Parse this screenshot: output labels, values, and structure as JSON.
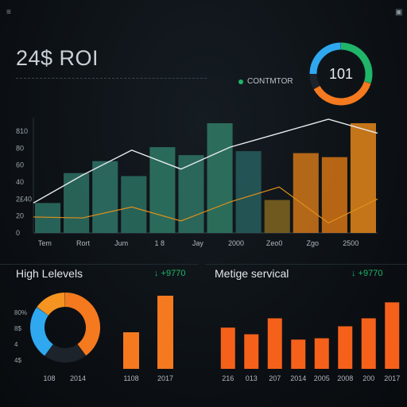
{
  "header": {
    "title": "24$ ROI",
    "legend_label": "CONTMTOR",
    "gauge_value": "101",
    "menu_icon": "menu-icon",
    "window_icon": "window-icon"
  },
  "colors": {
    "teal": "#2b6e62",
    "dark_teal": "#22504c",
    "orange": "#f5791f",
    "amber": "#c7751e",
    "blue": "#2fa8f0",
    "green": "#1fb66a",
    "line_orange": "#e0901c"
  },
  "panels": {
    "left": {
      "title": "High Lelevels",
      "value": "↓ +9770"
    },
    "right": {
      "title": "Metige servical",
      "value": "↓ +9770"
    }
  },
  "chart_data": [
    {
      "type": "bar",
      "title": "",
      "y_ticks": [
        "0",
        "20",
        "2£40",
        "40",
        "60",
        "80",
        "810"
      ],
      "x_tick_labels": [
        "Tem",
        "Rort",
        "Jum",
        "1 8",
        "Jay",
        "2000",
        "Zeo0",
        "Zgo",
        "2500"
      ],
      "ylim": [
        0,
        110
      ],
      "series": [
        {
          "values": [
            30,
            58,
            83,
            64,
            86,
            100,
            114,
            100
          ]
        },
        {
          "values": [
            16,
            15,
            26,
            12,
            31,
            46,
            10,
            34
          ]
        }
      ],
      "bars": [
        {
          "x": 0,
          "value": 30,
          "color": "#2a6c5f"
        },
        {
          "x": 1,
          "value": 60,
          "color": "#2b6b5e"
        },
        {
          "x": 2,
          "value": 72,
          "color": "#2d6f63"
        },
        {
          "x": 3,
          "value": 57,
          "color": "#2a6a5e"
        },
        {
          "x": 4,
          "value": 86,
          "color": "#2e7362"
        },
        {
          "x": 5,
          "value": 78,
          "color": "#2d6f60"
        },
        {
          "x": 6,
          "value": 110,
          "color": "#2f7560"
        },
        {
          "x": 7,
          "value": 82,
          "color": "#265a5a"
        },
        {
          "x": 8,
          "value": 33,
          "color": "#7a6020"
        },
        {
          "x": 9,
          "value": 80,
          "color": "#c5701a"
        },
        {
          "x": 10,
          "value": 76,
          "color": "#c96f15"
        },
        {
          "x": 11,
          "value": 110,
          "color": "#d8811a"
        }
      ]
    },
    {
      "type": "pie",
      "title": "",
      "y_ticks": [
        "80%",
        "8$",
        "4",
        "4$"
      ],
      "x_tick_labels": [
        "108",
        "2014"
      ],
      "slices": [
        {
          "value": 40,
          "color": "#f5791f"
        },
        {
          "value": 20,
          "color": "#1d232a"
        },
        {
          "value": 25,
          "color": "#2fa8f0"
        },
        {
          "value": 15,
          "color": "#f59420"
        }
      ]
    },
    {
      "type": "bar",
      "title": "",
      "x_tick_labels": [
        "1108",
        "2017"
      ],
      "ylim": [
        0,
        100
      ],
      "values": [
        50,
        100
      ]
    },
    {
      "type": "bar",
      "title": "",
      "x_tick_labels": [
        "216",
        "013",
        "207",
        "2014",
        "2005",
        "2008",
        "200",
        "2017"
      ],
      "ylim": [
        0,
        110
      ],
      "values": [
        62,
        52,
        76,
        44,
        46,
        64,
        76,
        100
      ]
    }
  ],
  "gauge": {
    "segments": [
      {
        "value": 30,
        "color": "#1fb66a"
      },
      {
        "value": 37,
        "color": "#f5791f"
      },
      {
        "value": 8,
        "color": "#1d232a"
      },
      {
        "value": 25,
        "color": "#2fa8f0"
      }
    ]
  }
}
